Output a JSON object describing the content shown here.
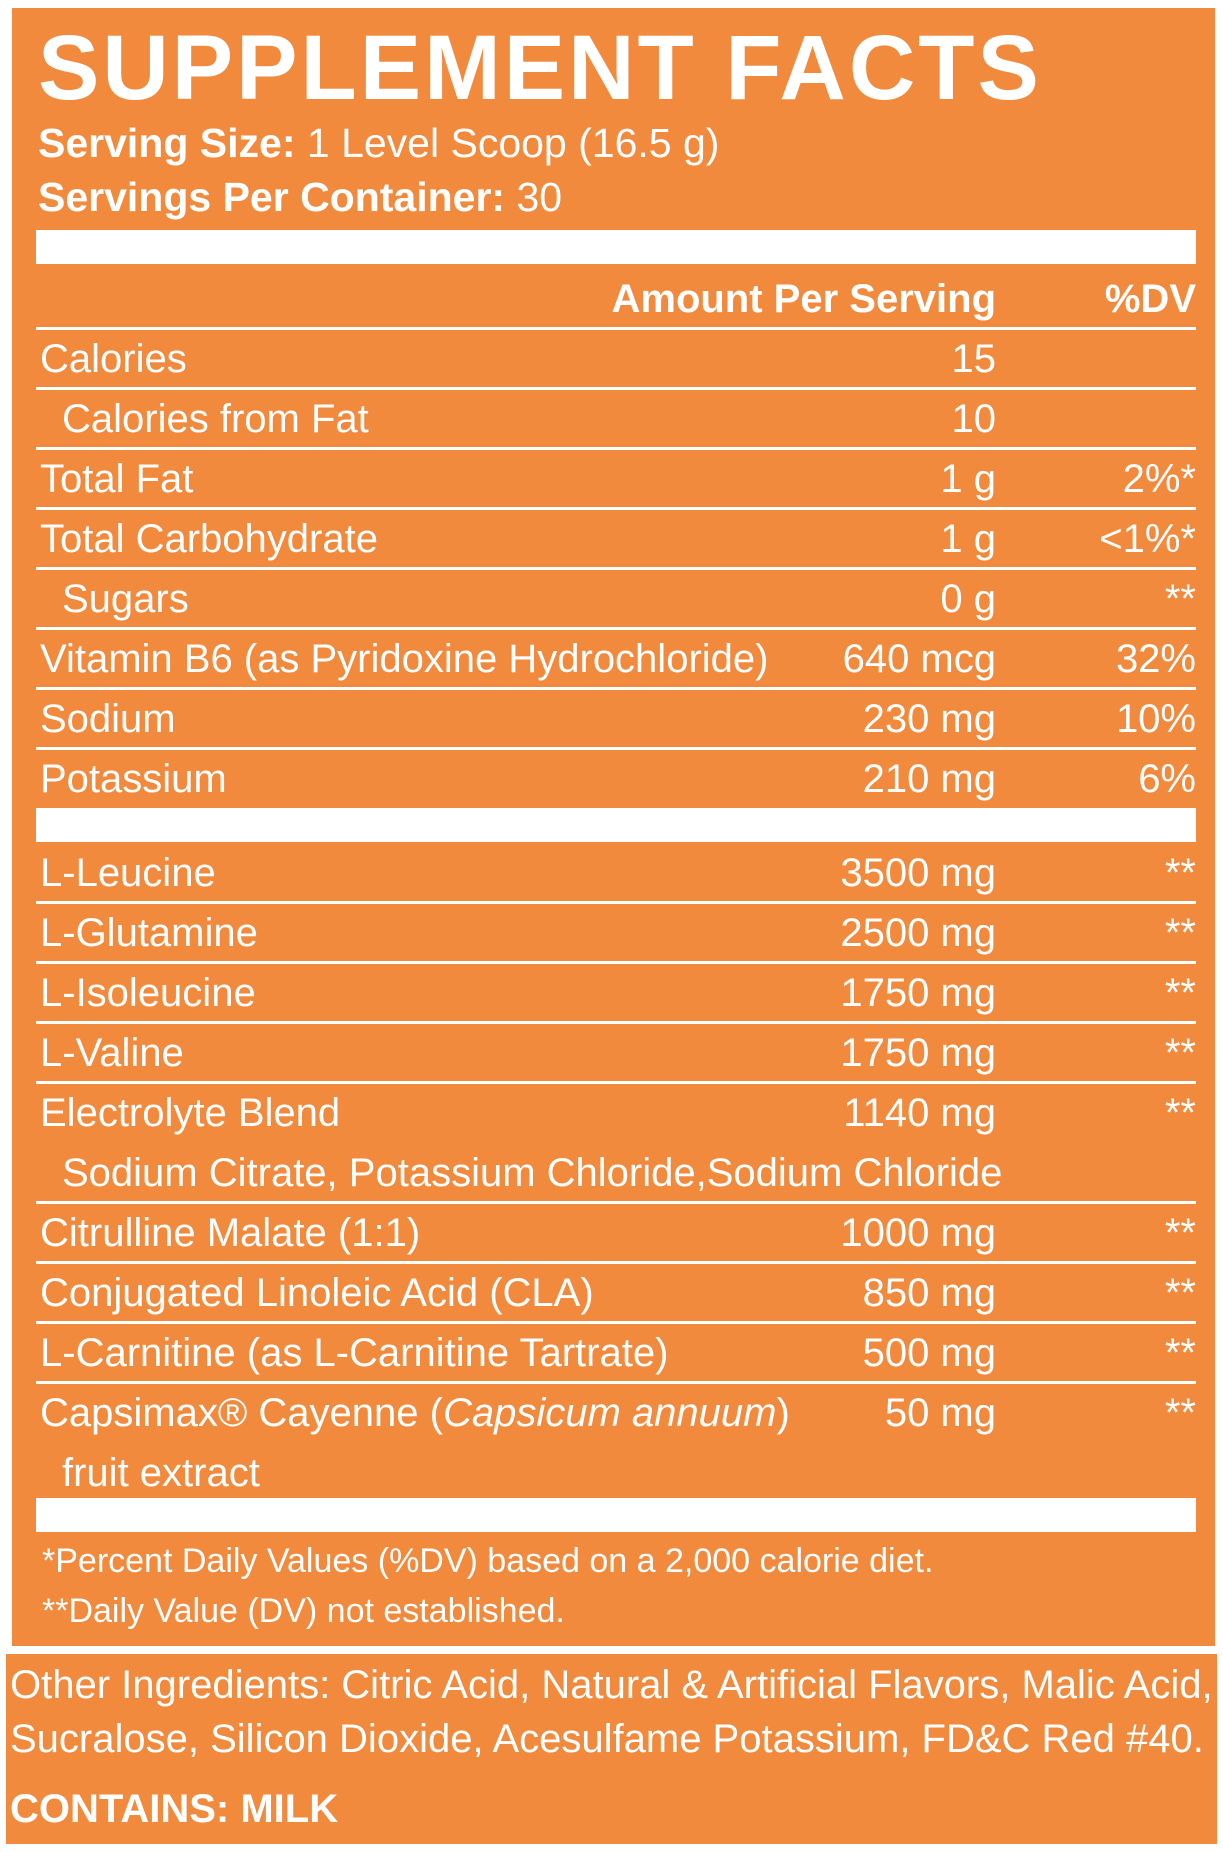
{
  "title": "SUPPLEMENT FACTS",
  "serving_size": {
    "label": "Serving Size:",
    "value": " 1 Level Scoop (16.5 g)"
  },
  "servings_per_container": {
    "label": "Servings Per Container:",
    "value": " 30"
  },
  "header": {
    "amount": "Amount Per Serving",
    "dv": "%DV"
  },
  "nutrients": [
    {
      "name": "Calories",
      "amount": "15",
      "dv": ""
    },
    {
      "name": "Calories from Fat",
      "amount": "10",
      "dv": ""
    },
    {
      "name": "Total Fat",
      "amount": "1 g",
      "dv": "2%*"
    },
    {
      "name": "Total Carbohydrate",
      "amount": "1 g",
      "dv": "<1%*"
    },
    {
      "name": "Sugars",
      "amount": "0 g",
      "dv": "**"
    },
    {
      "name": "Vitamin B6 (as Pyridoxine Hydrochloride)",
      "amount": "640 mcg",
      "dv": "32%"
    },
    {
      "name": "Sodium",
      "amount": "230 mg",
      "dv": "10%"
    },
    {
      "name": "Potassium",
      "amount": "210 mg",
      "dv": "6%"
    }
  ],
  "ingredients": [
    {
      "name": "L-Leucine",
      "amount": "3500 mg",
      "dv": "**"
    },
    {
      "name": "L-Glutamine",
      "amount": "2500 mg",
      "dv": "**"
    },
    {
      "name": "L-Isoleucine",
      "amount": "1750 mg",
      "dv": "**"
    },
    {
      "name": "L-Valine",
      "amount": "1750 mg",
      "dv": "**"
    },
    {
      "name": "Electrolyte Blend",
      "amount": "1140 mg",
      "dv": "**"
    },
    {
      "name": "Citrulline Malate (1:1)",
      "amount": "1000 mg",
      "dv": "**"
    },
    {
      "name": "Conjugated Linoleic Acid (CLA)",
      "amount": "850 mg",
      "dv": "**"
    },
    {
      "name": "L-Carnitine (as L-Carnitine Tartrate)",
      "amount": "500 mg",
      "dv": "**"
    }
  ],
  "electrolyte_sub": "Sodium Citrate, Potassium Chloride,Sodium Chloride",
  "capsimax": {
    "name_prefix": "Capsimax® Cayenne (",
    "name_italic": "Capsicum annuum",
    "name_suffix": ")",
    "line2": "fruit extract",
    "amount": "50 mg",
    "dv": "**"
  },
  "footnotes": [
    "*Percent Daily Values (%DV) based on a 2,000 calorie diet.",
    "**Daily Value (DV) not established."
  ],
  "other_ingredients": [
    "Other Ingredients: Citric Acid, Natural & Artificial Flavors, Malic Acid,",
    "Sucralose, Silicon Dioxide, Acesulfame Potassium, FD&C Red #40."
  ],
  "contains": "CONTAINS: MILK",
  "colors": {
    "panel": "#f28a3e",
    "text": "#ffffff"
  }
}
